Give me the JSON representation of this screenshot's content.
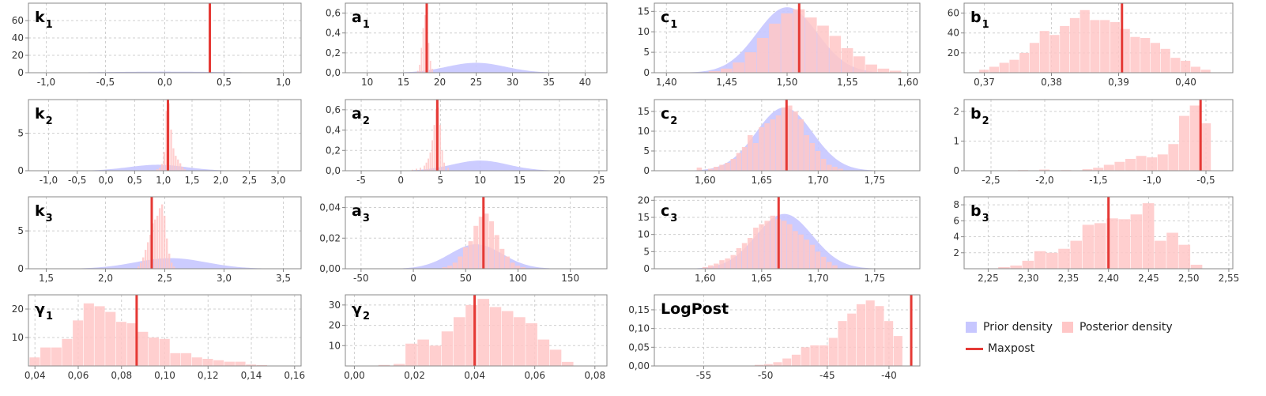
{
  "legend": {
    "prior_label": "Prior density",
    "posterior_label": "Posterior density",
    "maxpost_label": "Maxpost"
  },
  "colors": {
    "prior": "#c7c7ff",
    "posterior": "#ffc7c7",
    "maxpost": "#e53935",
    "grid": "#cfcfcf",
    "axis": "#888888"
  },
  "chart_data": [
    {
      "type": "bar",
      "title": "k",
      "subscript": "1",
      "xlim": [
        -1.15,
        1.15
      ],
      "ylim": [
        0,
        80
      ],
      "xticks": [
        -1,
        -0.5,
        0,
        0.5,
        1
      ],
      "xtick_labels": [
        "-1,0",
        "-0,5",
        "0,0",
        "0,5",
        "1,0"
      ],
      "yticks": [
        0,
        20,
        40,
        60
      ],
      "ytick_labels": [
        "0",
        "20",
        "40",
        "60"
      ],
      "prior": {
        "mean": 0,
        "sd": 0.5,
        "peak": 1.2
      },
      "posterior": {
        "bin_width": 0.002,
        "x": [
          0.378,
          0.38,
          0.382
        ],
        "values": [
          40,
          95,
          30
        ]
      },
      "maxpost": 0.38
    },
    {
      "type": "bar",
      "title": "a",
      "subscript": "1",
      "xlim": [
        7,
        43
      ],
      "ylim": [
        0,
        0.7
      ],
      "xticks": [
        10,
        15,
        20,
        25,
        30,
        35,
        40
      ],
      "xtick_labels": [
        "10",
        "15",
        "20",
        "25",
        "30",
        "35",
        "40"
      ],
      "yticks": [
        0,
        0.2,
        0.4,
        0.6
      ],
      "ytick_labels": [
        "0,0",
        "0,2",
        "0,4",
        "0,6"
      ],
      "prior": {
        "mean": 25,
        "sd": 4,
        "peak": 0.1
      },
      "posterior": {
        "bin_width": 0.25,
        "x": [
          17.0,
          17.25,
          17.5,
          17.75,
          18.0,
          18.25,
          18.5,
          18.75,
          19.0
        ],
        "values": [
          0.02,
          0.08,
          0.25,
          0.45,
          0.58,
          0.5,
          0.3,
          0.12,
          0.04
        ]
      },
      "maxpost": 18.2
    },
    {
      "type": "bar",
      "title": "c",
      "subscript": "1",
      "xlim": [
        1.39,
        1.61
      ],
      "ylim": [
        0,
        17
      ],
      "xticks": [
        1.4,
        1.45,
        1.5,
        1.55,
        1.6
      ],
      "xtick_labels": [
        "1,40",
        "1,45",
        "1,50",
        "1,55",
        "1,60"
      ],
      "yticks": [
        0,
        5,
        10,
        15
      ],
      "ytick_labels": [
        "0",
        "5",
        "10",
        "15"
      ],
      "prior": {
        "mean": 1.5,
        "sd": 0.025,
        "peak": 16
      },
      "posterior": {
        "bin_width": 0.01,
        "x": [
          1.44,
          1.45,
          1.46,
          1.47,
          1.48,
          1.49,
          1.5,
          1.51,
          1.52,
          1.53,
          1.54,
          1.55,
          1.56,
          1.57,
          1.58,
          1.59
        ],
        "values": [
          0.4,
          1,
          2.5,
          5,
          8.5,
          12,
          14.5,
          15.5,
          13.5,
          11.5,
          9,
          6,
          4,
          2,
          1,
          0.5
        ]
      },
      "maxpost": 1.51
    },
    {
      "type": "bar",
      "title": "b",
      "subscript": "1",
      "xlim": [
        0.367,
        0.407
      ],
      "ylim": [
        0,
        70
      ],
      "xticks": [
        0.37,
        0.38,
        0.39,
        0.4
      ],
      "xtick_labels": [
        "0,37",
        "0,38",
        "0,39",
        "0,40"
      ],
      "yticks": [
        20,
        40,
        60
      ],
      "ytick_labels": [
        "20",
        "40",
        "60"
      ],
      "prior": null,
      "posterior": {
        "bin_width": 0.0015,
        "x": [
          0.37,
          0.3715,
          0.373,
          0.3745,
          0.376,
          0.3775,
          0.379,
          0.3805,
          0.382,
          0.3835,
          0.385,
          0.3865,
          0.388,
          0.3895,
          0.391,
          0.3925,
          0.394,
          0.3955,
          0.397,
          0.3985,
          0.4,
          0.4015,
          0.403
        ],
        "values": [
          3,
          6,
          10,
          13,
          20,
          30,
          42,
          38,
          47,
          55,
          63,
          53,
          53,
          51,
          44,
          36,
          35,
          30,
          24,
          15,
          12,
          6,
          3
        ]
      },
      "maxpost": 0.3905
    },
    {
      "type": "bar",
      "title": "k",
      "subscript": "2",
      "xlim": [
        -1.35,
        3.4
      ],
      "ylim": [
        0,
        9.5
      ],
      "xticks": [
        -1,
        -0.5,
        0,
        0.5,
        1,
        1.5,
        2,
        2.5,
        3
      ],
      "xtick_labels": [
        "-1,0",
        "-0,5",
        "0,0",
        "0,5",
        "1,0",
        "1,5",
        "2,0",
        "2,5",
        "3,0"
      ],
      "yticks": [
        0,
        5
      ],
      "ytick_labels": [
        "0",
        "5"
      ],
      "prior": {
        "mean": 0.9,
        "sd": 0.5,
        "peak": 0.8
      },
      "posterior": {
        "bin_width": 0.04,
        "x": [
          0.9,
          0.94,
          0.98,
          1.02,
          1.06,
          1.1,
          1.14,
          1.18,
          1.22,
          1.26,
          1.3,
          1.34,
          1.38
        ],
        "values": [
          0.2,
          0.4,
          0.9,
          2.5,
          8,
          9,
          5.5,
          3,
          2,
          1.5,
          1,
          0.5,
          0.2
        ]
      },
      "maxpost": 1.08
    },
    {
      "type": "bar",
      "title": "a",
      "subscript": "2",
      "xlim": [
        -7,
        26
      ],
      "ylim": [
        0,
        0.7
      ],
      "xticks": [
        -5,
        0,
        5,
        10,
        15,
        20,
        25
      ],
      "xtick_labels": [
        "-5",
        "0",
        "5",
        "10",
        "15",
        "20",
        "25"
      ],
      "yticks": [
        0,
        0.2,
        0.4,
        0.6
      ],
      "ytick_labels": [
        "0,0",
        "0,2",
        "0,4",
        "0,6"
      ],
      "prior": {
        "mean": 10,
        "sd": 3.5,
        "peak": 0.1
      },
      "posterior": {
        "bin_width": 0.25,
        "x": [
          1.5,
          2.0,
          2.5,
          3.0,
          3.25,
          3.5,
          3.75,
          4.0,
          4.25,
          4.5,
          4.75,
          5.0,
          5.25,
          5.5,
          6.0
        ],
        "values": [
          0.01,
          0.02,
          0.03,
          0.05,
          0.08,
          0.12,
          0.18,
          0.3,
          0.45,
          0.6,
          0.62,
          0.45,
          0.2,
          0.08,
          0.03
        ]
      },
      "maxpost": 4.6
    },
    {
      "type": "bar",
      "title": "c",
      "subscript": "2",
      "xlim": [
        1.555,
        1.79
      ],
      "ylim": [
        0,
        18
      ],
      "xticks": [
        1.6,
        1.65,
        1.7,
        1.75
      ],
      "xtick_labels": [
        "1,60",
        "1,65",
        "1,70",
        "1,75"
      ],
      "yticks": [
        0,
        5,
        10,
        15
      ],
      "ytick_labels": [
        "0",
        "5",
        "10",
        "15"
      ],
      "prior": {
        "mean": 1.67,
        "sd": 0.025,
        "peak": 16
      },
      "posterior": {
        "bin_width": 0.005,
        "x": [
          1.595,
          1.605,
          1.61,
          1.615,
          1.62,
          1.625,
          1.63,
          1.635,
          1.64,
          1.645,
          1.65,
          1.655,
          1.66,
          1.665,
          1.67,
          1.675,
          1.68,
          1.685,
          1.69,
          1.695,
          1.7,
          1.705,
          1.71,
          1.715,
          1.72
        ],
        "values": [
          0.8,
          0.5,
          1,
          1.5,
          2,
          3,
          4.5,
          6,
          9,
          7,
          11,
          12,
          13,
          14,
          16,
          16.5,
          15,
          13,
          9,
          7,
          5,
          3,
          1.5,
          1,
          0.5
        ]
      },
      "maxpost": 1.672
    },
    {
      "type": "bar",
      "title": "b",
      "subscript": "2",
      "xlim": [
        -2.75,
        -0.25
      ],
      "ylim": [
        0,
        2.4
      ],
      "xticks": [
        -2.5,
        -2,
        -1.5,
        -1,
        -0.5
      ],
      "xtick_labels": [
        "-2,5",
        "-2,0",
        "-1,5",
        "-1,0",
        "-0,5"
      ],
      "yticks": [
        0,
        1,
        2
      ],
      "ytick_labels": [
        "0",
        "1",
        "2"
      ],
      "prior": null,
      "posterior": {
        "bin_width": 0.1,
        "x": [
          -2.2,
          -2.0,
          -1.8,
          -1.6,
          -1.5,
          -1.4,
          -1.3,
          -1.2,
          -1.1,
          -1.0,
          -0.9,
          -0.8,
          -0.7,
          -0.6,
          -0.5
        ],
        "values": [
          0.02,
          0.04,
          0.02,
          0.05,
          0.1,
          0.2,
          0.3,
          0.4,
          0.5,
          0.45,
          0.55,
          0.9,
          1.85,
          2.2,
          1.6
        ]
      },
      "maxpost": -0.55
    },
    {
      "type": "bar",
      "title": "k",
      "subscript": "3",
      "xlim": [
        1.35,
        3.65
      ],
      "ylim": [
        0,
        9.5
      ],
      "xticks": [
        1.5,
        2,
        2.5,
        3,
        3.5
      ],
      "xtick_labels": [
        "1,5",
        "2,0",
        "2,5",
        "3,0",
        "3,5"
      ],
      "yticks": [
        0,
        5
      ],
      "ytick_labels": [
        "0",
        "5"
      ],
      "prior": {
        "mean": 2.55,
        "sd": 0.3,
        "peak": 1.4
      },
      "posterior": {
        "bin_width": 0.02,
        "x": [
          2.28,
          2.3,
          2.32,
          2.34,
          2.36,
          2.38,
          2.4,
          2.42,
          2.44,
          2.46,
          2.48,
          2.5,
          2.52,
          2.54,
          2.56,
          2.58
        ],
        "values": [
          0.3,
          0.8,
          1.5,
          2.5,
          3.5,
          4.5,
          6,
          6.5,
          7,
          8,
          8.5,
          7,
          4,
          2,
          0.8,
          0.3
        ]
      },
      "maxpost": 2.39
    },
    {
      "type": "bar",
      "title": "a",
      "subscript": "3",
      "xlim": [
        -65,
        185
      ],
      "ylim": [
        0,
        0.047
      ],
      "xticks": [
        -50,
        0,
        50,
        100,
        150
      ],
      "xtick_labels": [
        "-50",
        "0",
        "50",
        "100",
        "150"
      ],
      "yticks": [
        0,
        0.02,
        0.04
      ],
      "ytick_labels": [
        "0,00",
        "0,02",
        "0,04"
      ],
      "prior": {
        "mean": 60,
        "sd": 25,
        "peak": 0.016
      },
      "posterior": {
        "bin_width": 5,
        "x": [
          30,
          35,
          40,
          45,
          50,
          55,
          60,
          65,
          70,
          75,
          80,
          85,
          90,
          95,
          100,
          105
        ],
        "values": [
          0.001,
          0.002,
          0.004,
          0.008,
          0.014,
          0.018,
          0.028,
          0.034,
          0.036,
          0.031,
          0.022,
          0.013,
          0.008,
          0.004,
          0.002,
          0.001
        ]
      },
      "maxpost": 67
    },
    {
      "type": "bar",
      "title": "c",
      "subscript": "3",
      "xlim": [
        1.555,
        1.79
      ],
      "ylim": [
        0,
        21
      ],
      "xticks": [
        1.6,
        1.65,
        1.7,
        1.75
      ],
      "xtick_labels": [
        "1,60",
        "1,65",
        "1,70",
        "1,75"
      ],
      "yticks": [
        0,
        5,
        10,
        15,
        20
      ],
      "ytick_labels": [
        "0",
        "5",
        "10",
        "15",
        "20"
      ],
      "prior": {
        "mean": 1.67,
        "sd": 0.025,
        "peak": 16
      },
      "posterior": {
        "bin_width": 0.005,
        "x": [
          1.6,
          1.605,
          1.61,
          1.615,
          1.62,
          1.625,
          1.63,
          1.635,
          1.64,
          1.645,
          1.65,
          1.655,
          1.66,
          1.665,
          1.67,
          1.675,
          1.68,
          1.685,
          1.69,
          1.695,
          1.7,
          1.705,
          1.71,
          1.715
        ],
        "values": [
          0.5,
          1,
          1.5,
          2.5,
          3,
          4,
          6,
          7.5,
          9,
          12,
          13,
          14,
          15.5,
          14.5,
          14,
          13,
          11,
          10,
          8.5,
          7,
          5,
          3.5,
          2,
          1
        ]
      },
      "maxpost": 1.665
    },
    {
      "type": "bar",
      "title": "b",
      "subscript": "3",
      "xlim": [
        2.22,
        2.555
      ],
      "ylim": [
        0,
        9
      ],
      "xticks": [
        2.25,
        2.3,
        2.35,
        2.4,
        2.45,
        2.5,
        2.55
      ],
      "xtick_labels": [
        "2,25",
        "2,30",
        "2,35",
        "2,40",
        "2,45",
        "2,50",
        "2,55"
      ],
      "yticks": [
        2,
        4,
        6,
        8
      ],
      "ytick_labels": [
        "2",
        "4",
        "6",
        "8"
      ],
      "prior": null,
      "posterior": {
        "bin_width": 0.015,
        "x": [
          2.27,
          2.285,
          2.3,
          2.315,
          2.33,
          2.345,
          2.36,
          2.375,
          2.39,
          2.405,
          2.42,
          2.435,
          2.45,
          2.465,
          2.48,
          2.495,
          2.51
        ],
        "values": [
          0.2,
          0.4,
          1,
          2.2,
          2,
          2.5,
          3.5,
          5.5,
          5.7,
          6.3,
          6.2,
          6.8,
          8.2,
          3.5,
          4.5,
          3,
          0.5
        ]
      },
      "maxpost": 2.4
    },
    {
      "type": "bar",
      "title": "γ",
      "subscript": "1",
      "xlim": [
        0.037,
        0.163
      ],
      "ylim": [
        0,
        25
      ],
      "xticks": [
        0.04,
        0.06,
        0.08,
        0.1,
        0.12,
        0.14,
        0.16
      ],
      "xtick_labels": [
        "0,04",
        "0,06",
        "0,08",
        "0,10",
        "0,12",
        "0,14",
        "0,16"
      ],
      "yticks": [
        10,
        20
      ],
      "ytick_labels": [
        "10",
        "20"
      ],
      "prior": null,
      "posterior": {
        "bin_width": 0.005,
        "x": [
          0.04,
          0.045,
          0.05,
          0.055,
          0.06,
          0.065,
          0.07,
          0.075,
          0.08,
          0.085,
          0.09,
          0.095,
          0.1,
          0.105,
          0.11,
          0.115,
          0.12,
          0.125,
          0.13,
          0.135,
          0.14,
          0.145
        ],
        "values": [
          3,
          6.5,
          6.5,
          9.5,
          16,
          22,
          21,
          19,
          15.5,
          15,
          12,
          10,
          9.5,
          4.5,
          4.5,
          3,
          2.5,
          2,
          1.5,
          1.5,
          0.5,
          0.3
        ]
      },
      "maxpost": 0.087
    },
    {
      "type": "bar",
      "title": "γ",
      "subscript": "2",
      "xlim": [
        -0.003,
        0.084
      ],
      "ylim": [
        0,
        35
      ],
      "xticks": [
        0,
        0.02,
        0.04,
        0.06,
        0.08
      ],
      "xtick_labels": [
        "0,00",
        "0,02",
        "0,04",
        "0,06",
        "0,08"
      ],
      "yticks": [
        10,
        20,
        30
      ],
      "ytick_labels": [
        "10",
        "20",
        "30"
      ],
      "prior": null,
      "posterior": {
        "bin_width": 0.004,
        "x": [
          0.01,
          0.015,
          0.019,
          0.023,
          0.027,
          0.031,
          0.035,
          0.039,
          0.043,
          0.047,
          0.051,
          0.055,
          0.059,
          0.063,
          0.067,
          0.071
        ],
        "values": [
          0.5,
          1,
          11,
          13,
          10,
          17,
          24,
          30,
          33,
          29,
          27,
          24,
          21,
          13,
          8,
          2
        ]
      },
      "maxpost": 0.04
    },
    {
      "type": "bar",
      "title": "LogPost",
      "subscript": "",
      "xlim": [
        -59,
        -37.5
      ],
      "ylim": [
        0,
        0.19
      ],
      "xticks": [
        -55,
        -50,
        -45,
        -40
      ],
      "xtick_labels": [
        "-55",
        "-50",
        "-45",
        "-40"
      ],
      "yticks": [
        0,
        0.05,
        0.1,
        0.15
      ],
      "ytick_labels": [
        "0,00",
        "0,05",
        "0,10",
        "0,15"
      ],
      "prior": null,
      "posterior": {
        "bin_width": 0.75,
        "x": [
          -50.5,
          -49.75,
          -49,
          -48.25,
          -47.5,
          -46.75,
          -46,
          -45.25,
          -44.5,
          -43.75,
          -43,
          -42.25,
          -41.5,
          -40.75,
          -40,
          -39.25
        ],
        "values": [
          0.003,
          0.005,
          0.01,
          0.02,
          0.03,
          0.05,
          0.055,
          0.055,
          0.075,
          0.12,
          0.14,
          0.165,
          0.175,
          0.16,
          0.12,
          0.08
        ]
      },
      "maxpost": -38.2
    }
  ]
}
